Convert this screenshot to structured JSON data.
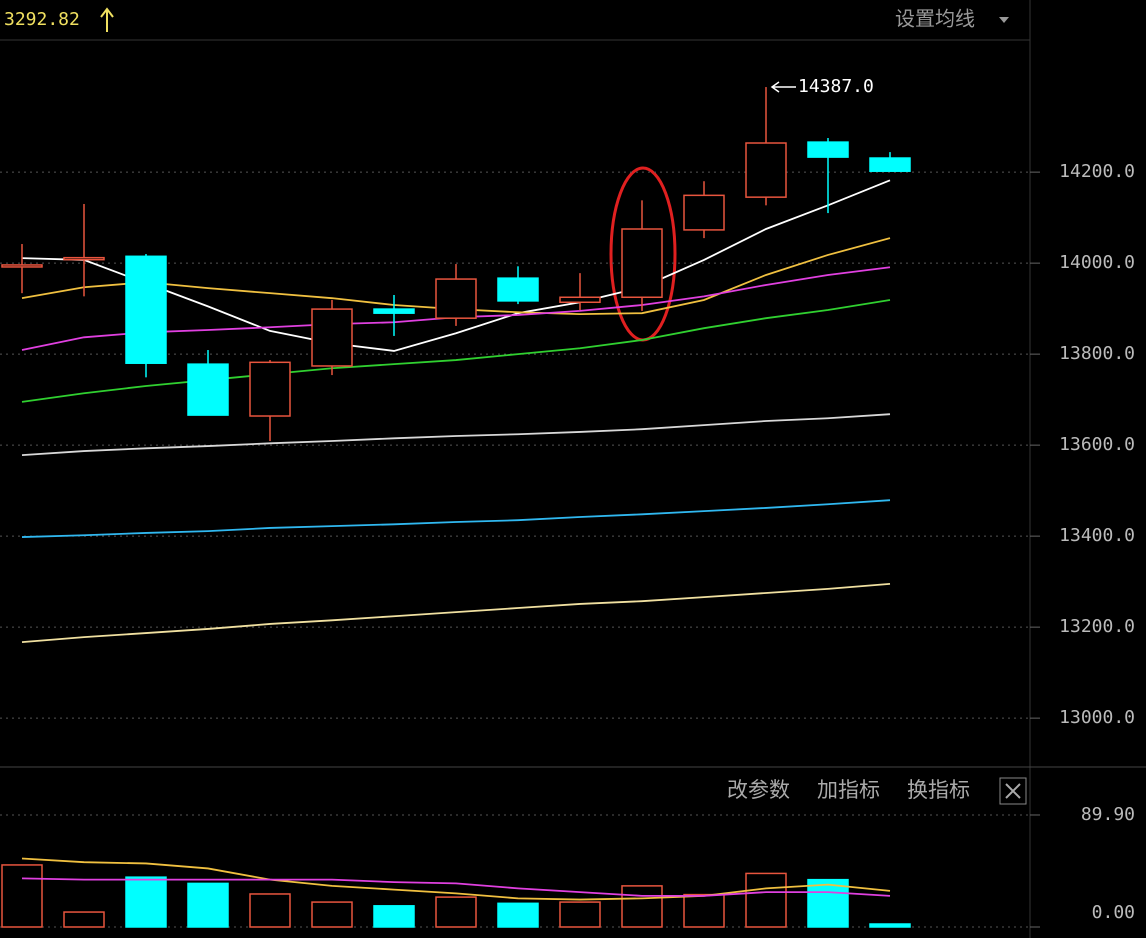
{
  "header": {
    "price": "3292.82",
    "ma_settings": "设置均线"
  },
  "toolbar": {
    "buttons": [
      "改参数",
      "加指标",
      "换指标"
    ]
  },
  "chart_data": [
    {
      "type": "candlestick",
      "up_color": "#e8553e",
      "down_color": "#00ffff",
      "open": [
        13994,
        14010,
        14015,
        13778,
        13664,
        13774,
        13899,
        13879,
        13967,
        13914,
        13925,
        14073,
        14145,
        14266,
        14231
      ],
      "high": [
        14042,
        14130,
        14020,
        13809,
        13787,
        13919,
        13930,
        13998,
        13993,
        13978,
        14138,
        14180,
        14387,
        14275,
        14244
      ],
      "low": [
        13934,
        13927,
        13749,
        13666,
        13609,
        13754,
        13840,
        13862,
        13910,
        13897,
        13895,
        14055,
        14127,
        14110,
        14202
      ],
      "close": [
        13996,
        14012,
        13780,
        13666,
        13782,
        13899,
        13890,
        13965,
        13917,
        13925,
        14075,
        14149,
        14264,
        14233,
        14202
      ],
      "series": [
        {
          "color": "#ffffff",
          "values": [
            14011,
            14007,
            13956,
            13905,
            13851,
            13824,
            13807,
            13846,
            13890,
            13914,
            13947,
            14007,
            14075,
            14127,
            14182
          ]
        },
        {
          "color": "#f0c040",
          "values": [
            13923,
            13947,
            13958,
            13945,
            13934,
            13923,
            13908,
            13899,
            13892,
            13888,
            13890,
            13919,
            13974,
            14018,
            14055
          ]
        },
        {
          "color": "#e040e0",
          "values": [
            13809,
            13837,
            13848,
            13853,
            13859,
            13866,
            13870,
            13881,
            13886,
            13895,
            13908,
            13927,
            13952,
            13974,
            13991
          ]
        },
        {
          "color": "#30d030",
          "values": [
            13695,
            13714,
            13730,
            13743,
            13756,
            13769,
            13778,
            13787,
            13800,
            13813,
            13831,
            13857,
            13879,
            13897,
            13919
          ]
        },
        {
          "color": "#d8d8d8",
          "values": [
            13578,
            13587,
            13593,
            13598,
            13604,
            13609,
            13615,
            13620,
            13624,
            13629,
            13635,
            13644,
            13653,
            13659,
            13668
          ]
        },
        {
          "color": "#30b8f0",
          "values": [
            13398,
            13402,
            13407,
            13411,
            13418,
            13422,
            13426,
            13431,
            13435,
            13442,
            13448,
            13455,
            13462,
            13470,
            13479
          ]
        },
        {
          "color": "#f0e0a0",
          "values": [
            13167,
            13178,
            13187,
            13196,
            13207,
            13215,
            13224,
            13233,
            13242,
            13251,
            13257,
            13266,
            13275,
            13284,
            13295
          ]
        }
      ],
      "annotation": "14387.0",
      "ylim": [
        12897,
        14486
      ],
      "yticks": [
        {
          "value": 13000,
          "label": "13000.0"
        },
        {
          "value": 13200,
          "label": "13200.0"
        },
        {
          "value": 13400,
          "label": "13400.0"
        },
        {
          "value": 13600,
          "label": "13600.0"
        },
        {
          "value": 13800,
          "label": "13800.0"
        },
        {
          "value": 14000,
          "label": "14000.0"
        },
        {
          "value": 14200,
          "label": "14200.0"
        }
      ],
      "grid": true
    },
    {
      "type": "bar",
      "values": [
        49.8,
        12,
        40,
        35,
        26.5,
        20,
        17,
        24,
        19,
        20,
        33,
        26,
        43,
        38,
        2.4
      ],
      "series": [
        {
          "color": "#f0c040",
          "values": [
            55,
            52,
            51,
            47,
            38,
            33,
            30,
            27,
            23,
            22,
            23,
            25,
            31,
            34,
            29
          ]
        },
        {
          "color": "#e040e0",
          "values": [
            39,
            38,
            38,
            38,
            38,
            38,
            36,
            35,
            31,
            28,
            25,
            25,
            28,
            28,
            25
          ]
        }
      ],
      "ylim": [
        0,
        126
      ],
      "yticks": [
        {
          "value": 0,
          "label": "0.00"
        },
        {
          "value": 89.9,
          "label": "89.90"
        }
      ],
      "grid": true
    }
  ]
}
